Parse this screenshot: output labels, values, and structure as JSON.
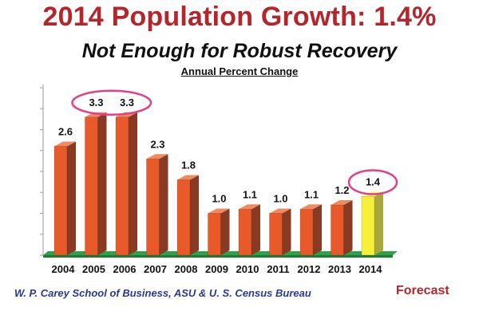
{
  "header": {
    "title": "2014 Population Growth: 1.4%",
    "subtitle": "Not Enough for Robust Recovery",
    "unit_label": "Annual Percent Change"
  },
  "footer": {
    "source": "W. P. Carey School of Business, ASU & U. S. Census Bureau",
    "forecast_label": "Forecast"
  },
  "colors": {
    "bar_front": "#e85a2a",
    "bar_side": "#8a3a22",
    "bar_top": "#f08a60",
    "forecast_front": "#f6f03a",
    "forecast_side": "#a9a83a",
    "floor": "#2ea24a",
    "highlight_ring": "#e0418a"
  },
  "chart_data": {
    "type": "bar",
    "title": "2014 Population Growth: 1.4%",
    "ylabel": "Annual Percent Change",
    "categories": [
      "2004",
      "2005",
      "2006",
      "2007",
      "2008",
      "2009",
      "2010",
      "2011",
      "2012",
      "2013",
      "2014"
    ],
    "values": [
      2.6,
      3.3,
      3.3,
      2.3,
      1.8,
      1.0,
      1.1,
      1.0,
      1.1,
      1.2,
      1.4
    ],
    "value_labels": [
      "2.6",
      "3.3",
      "3.3",
      "2.3",
      "1.8",
      "1.0",
      "1.1",
      "1.0",
      "1.1",
      "1.2",
      "1.4"
    ],
    "forecast_category": "2014",
    "highlighted_categories": [
      [
        "2005",
        "2006"
      ],
      [
        "2014"
      ]
    ],
    "ylim": [
      0,
      4
    ],
    "grid": false,
    "legend": "none"
  }
}
